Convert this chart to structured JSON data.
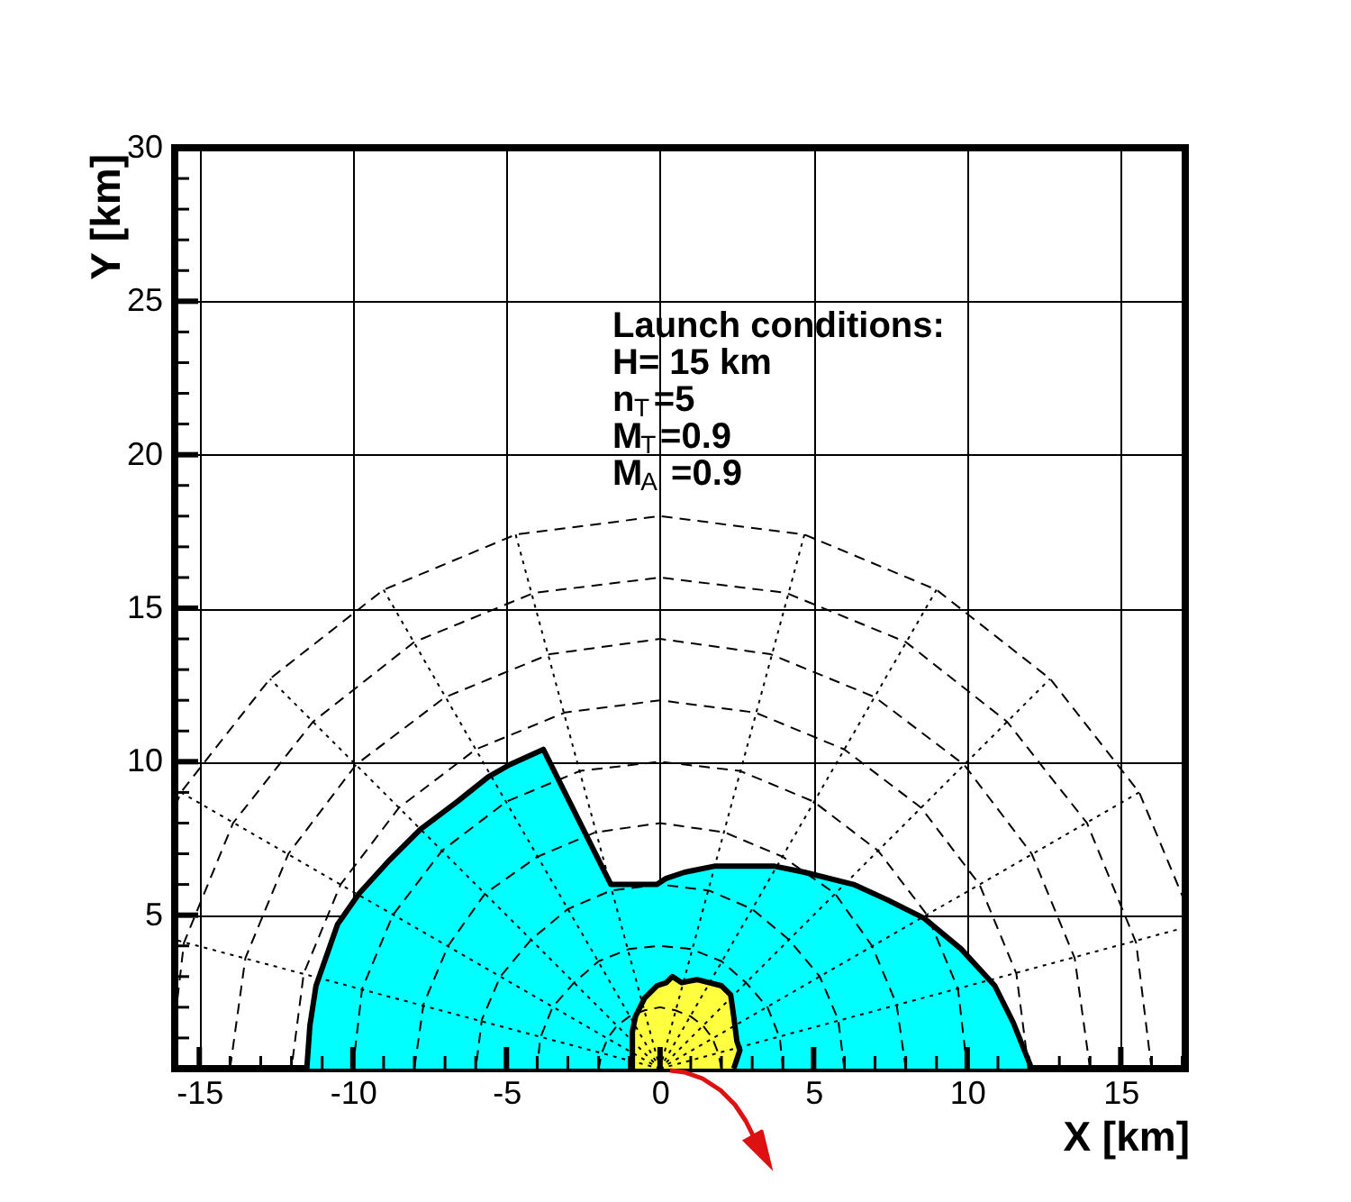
{
  "chart_data": {
    "type": "line",
    "xlabel": "X [km]",
    "ylabel": "Y [km]",
    "xlim": [
      -15.8,
      17.1
    ],
    "ylim": [
      0,
      30
    ],
    "xticks": [
      -15,
      {
        "value": -14,
        "label": null
      },
      {
        "value": -13,
        "label": null
      },
      {
        "value": -12,
        "label": null
      },
      {
        "value": -11,
        "label": null
      },
      -10,
      {
        "value": -9,
        "label": null
      },
      {
        "value": -8,
        "label": null
      },
      {
        "value": -7,
        "label": null
      },
      {
        "value": -6,
        "label": null
      },
      -5,
      {
        "value": -4,
        "label": null
      },
      {
        "value": -3,
        "label": null
      },
      {
        "value": -2,
        "label": null
      },
      {
        "value": -1,
        "label": null
      },
      0,
      {
        "value": 1,
        "label": null
      },
      {
        "value": 2,
        "label": null
      },
      {
        "value": 3,
        "label": null
      },
      {
        "value": 4,
        "label": null
      },
      5,
      {
        "value": 6,
        "label": null
      },
      {
        "value": 7,
        "label": null
      },
      {
        "value": 8,
        "label": null
      },
      {
        "value": 9,
        "label": null
      },
      10,
      {
        "value": 11,
        "label": null
      },
      {
        "value": 12,
        "label": null
      },
      {
        "value": 13,
        "label": null
      },
      {
        "value": 14,
        "label": null
      },
      15,
      {
        "value": 16,
        "label": null
      },
      {
        "value": 17,
        "label": null
      }
    ],
    "yticks": [
      {
        "value": 0,
        "label": null
      },
      {
        "value": 1,
        "label": null
      },
      {
        "value": 2,
        "label": null
      },
      {
        "value": 3,
        "label": null
      },
      {
        "value": 4,
        "label": null
      },
      5,
      {
        "value": 6,
        "label": null
      },
      {
        "value": 7,
        "label": null
      },
      {
        "value": 8,
        "label": null
      },
      {
        "value": 9,
        "label": null
      },
      10,
      {
        "value": 11,
        "label": null
      },
      {
        "value": 12,
        "label": null
      },
      {
        "value": 13,
        "label": null
      },
      {
        "value": 14,
        "label": null
      },
      15,
      {
        "value": 16,
        "label": null
      },
      {
        "value": 17,
        "label": null
      },
      {
        "value": 18,
        "label": null
      },
      {
        "value": 19,
        "label": null
      },
      20,
      {
        "value": 21,
        "label": null
      },
      {
        "value": 22,
        "label": null
      },
      {
        "value": 23,
        "label": null
      },
      {
        "value": 24,
        "label": null
      },
      25,
      {
        "value": 26,
        "label": null
      },
      {
        "value": 27,
        "label": null
      },
      {
        "value": 28,
        "label": null
      },
      {
        "value": 29,
        "label": null
      },
      30
    ],
    "grid": true,
    "annotations": [
      "Launch conditions:",
      "H= 15 km",
      "n$_{T}$=5",
      "M$_{T}$=0.9",
      "M$_{A}$ =0.9"
    ],
    "series": [
      {
        "type": "area",
        "color": "#00ffff",
        "x": [
          -11.5,
          -11.4,
          -11.2,
          -10.5,
          -9.8,
          -8.8,
          -7.8,
          -6.6,
          -5.6,
          -4.9,
          -3.8,
          -1.6,
          -0.1,
          0.2,
          0.8,
          1.8,
          3.7,
          4.7,
          6.3,
          7.4,
          8.6,
          9.8,
          10.9,
          11.5,
          12.1
        ],
        "values": [
          0,
          1.4,
          2.7,
          4.7,
          5.7,
          6.8,
          7.8,
          8.7,
          9.5,
          9.9,
          10.4,
          6.0,
          6.0,
          6.2,
          6.4,
          6.6,
          6.6,
          6.4,
          6.0,
          5.5,
          4.9,
          3.9,
          2.7,
          1.5,
          0
        ]
      },
      {
        "type": "area",
        "color": "#ffff40",
        "x": [
          -0.9,
          -0.9,
          -0.8,
          -0.5,
          -0.1,
          0.2,
          0.4,
          0.7,
          1.2,
          2.0,
          2.3,
          2.4,
          2.5,
          2.6,
          2.4
        ],
        "values": [
          0,
          1.2,
          1.7,
          2.3,
          2.7,
          2.8,
          3.0,
          2.8,
          2.9,
          2.7,
          2.4,
          1.7,
          0.9,
          0.6,
          0
        ]
      },
      {
        "color": "#000000",
        "line_style": "dashed",
        "x": [
          2,
          1.9,
          1.7,
          1.4,
          1,
          0.5,
          0,
          -0.5,
          -1,
          -1.4,
          -1.7,
          -1.9,
          -2
        ],
        "values": [
          0,
          0.5,
          1,
          1.4,
          1.7,
          1.9,
          2,
          1.9,
          1.7,
          1.4,
          1,
          0.5,
          0
        ]
      },
      {
        "color": "#000000",
        "line_style": "dashed",
        "x": [
          4,
          3.9,
          3.5,
          2.8,
          2,
          1,
          0,
          -1,
          -2,
          -2.8,
          -3.5,
          -3.9,
          -4
        ],
        "values": [
          0,
          1,
          2,
          2.8,
          3.5,
          3.9,
          4,
          3.9,
          3.5,
          2.8,
          2,
          1,
          0
        ]
      },
      {
        "color": "#000000",
        "line_style": "dashed",
        "x": [
          6,
          5.8,
          5.2,
          4.2,
          3,
          1.6,
          0,
          -1.6,
          -3,
          -4.2,
          -5.2,
          -5.8,
          -6
        ],
        "values": [
          0,
          1.6,
          3,
          4.2,
          5.2,
          5.8,
          6,
          5.8,
          5.2,
          4.2,
          3,
          1.6,
          0
        ]
      },
      {
        "color": "#000000",
        "line_style": "dashed",
        "x": [
          8,
          7.7,
          6.9,
          5.7,
          4,
          2.1,
          0,
          -2.1,
          -4,
          -5.7,
          -6.9,
          -7.7,
          -8
        ],
        "values": [
          0,
          2.1,
          4,
          5.7,
          6.9,
          7.7,
          8,
          7.7,
          6.9,
          5.7,
          4,
          2.1,
          0
        ]
      },
      {
        "color": "#000000",
        "line_style": "dashed",
        "x": [
          10,
          9.7,
          8.7,
          7.1,
          5,
          2.6,
          0,
          -2.6,
          -5,
          -7.1,
          -8.7,
          -9.7,
          -10
        ],
        "values": [
          0,
          2.6,
          5,
          7.1,
          8.7,
          9.7,
          10,
          9.7,
          8.7,
          7.1,
          5,
          2.6,
          0
        ]
      },
      {
        "color": "#000000",
        "line_style": "dashed",
        "x": [
          12,
          11.6,
          10.4,
          8.5,
          6,
          3.1,
          0,
          -3.1,
          -6,
          -8.5,
          -10.4,
          -11.6,
          -12
        ],
        "values": [
          0,
          3.1,
          6,
          8.5,
          10.4,
          11.6,
          12,
          11.6,
          10.4,
          8.5,
          6,
          3.1,
          0
        ]
      },
      {
        "color": "#000000",
        "line_style": "dashed",
        "x": [
          14,
          13.5,
          12.1,
          9.9,
          7,
          3.6,
          0,
          -3.6,
          -7,
          -9.9,
          -12.1,
          -13.5,
          -14
        ],
        "values": [
          0,
          3.6,
          7,
          9.9,
          12.1,
          13.5,
          14,
          13.5,
          12.1,
          9.9,
          7,
          3.6,
          0
        ]
      },
      {
        "color": "#000000",
        "line_style": "dashed",
        "x": [
          16,
          15.5,
          13.9,
          11.3,
          8,
          4.1,
          0,
          -4.1,
          -8,
          -11.3,
          -13.9,
          -15.5,
          -15.8
        ],
        "values": [
          0,
          4.1,
          8,
          11.3,
          13.9,
          15.5,
          16,
          15.5,
          13.9,
          11.3,
          8,
          4.1,
          1.5
        ]
      },
      {
        "color": "#000000",
        "line_style": "dashed",
        "x": [
          17.1,
          15.6,
          12.7,
          9,
          4.7,
          0,
          -4.7,
          -9,
          -12.7,
          -15.6,
          -15.8
        ],
        "values": [
          5.4,
          9,
          12.7,
          15.6,
          17.4,
          18,
          17.4,
          15.6,
          12.7,
          9,
          8.5
        ]
      },
      {
        "color": "#000000",
        "line_style": "dotted",
        "x": [
          0,
          17.1
        ],
        "values": [
          0,
          4.6
        ]
      },
      {
        "color": "#000000",
        "line_style": "dotted",
        "x": [
          0,
          15.6
        ],
        "values": [
          0,
          9
        ]
      },
      {
        "color": "#000000",
        "line_style": "dotted",
        "x": [
          0,
          12.7
        ],
        "values": [
          0,
          12.7
        ]
      },
      {
        "color": "#000000",
        "line_style": "dotted",
        "x": [
          0,
          9
        ],
        "values": [
          0,
          15.6
        ]
      },
      {
        "color": "#000000",
        "line_style": "dotted",
        "x": [
          0,
          4.7
        ],
        "values": [
          0,
          17.4
        ]
      },
      {
        "color": "#000000",
        "line_style": "dotted",
        "x": [
          0,
          -4.7
        ],
        "values": [
          0,
          17.4
        ]
      },
      {
        "color": "#000000",
        "line_style": "dotted",
        "x": [
          0,
          -9
        ],
        "values": [
          0,
          15.6
        ]
      },
      {
        "color": "#000000",
        "line_style": "dotted",
        "x": [
          0,
          -12.7
        ],
        "values": [
          0,
          12.7
        ]
      },
      {
        "color": "#000000",
        "line_style": "dotted",
        "x": [
          0,
          -15.6
        ],
        "values": [
          0,
          9
        ]
      },
      {
        "color": "#000000",
        "line_style": "dotted",
        "x": [
          0,
          -15.8
        ],
        "values": [
          0,
          4.2
        ]
      }
    ]
  }
}
